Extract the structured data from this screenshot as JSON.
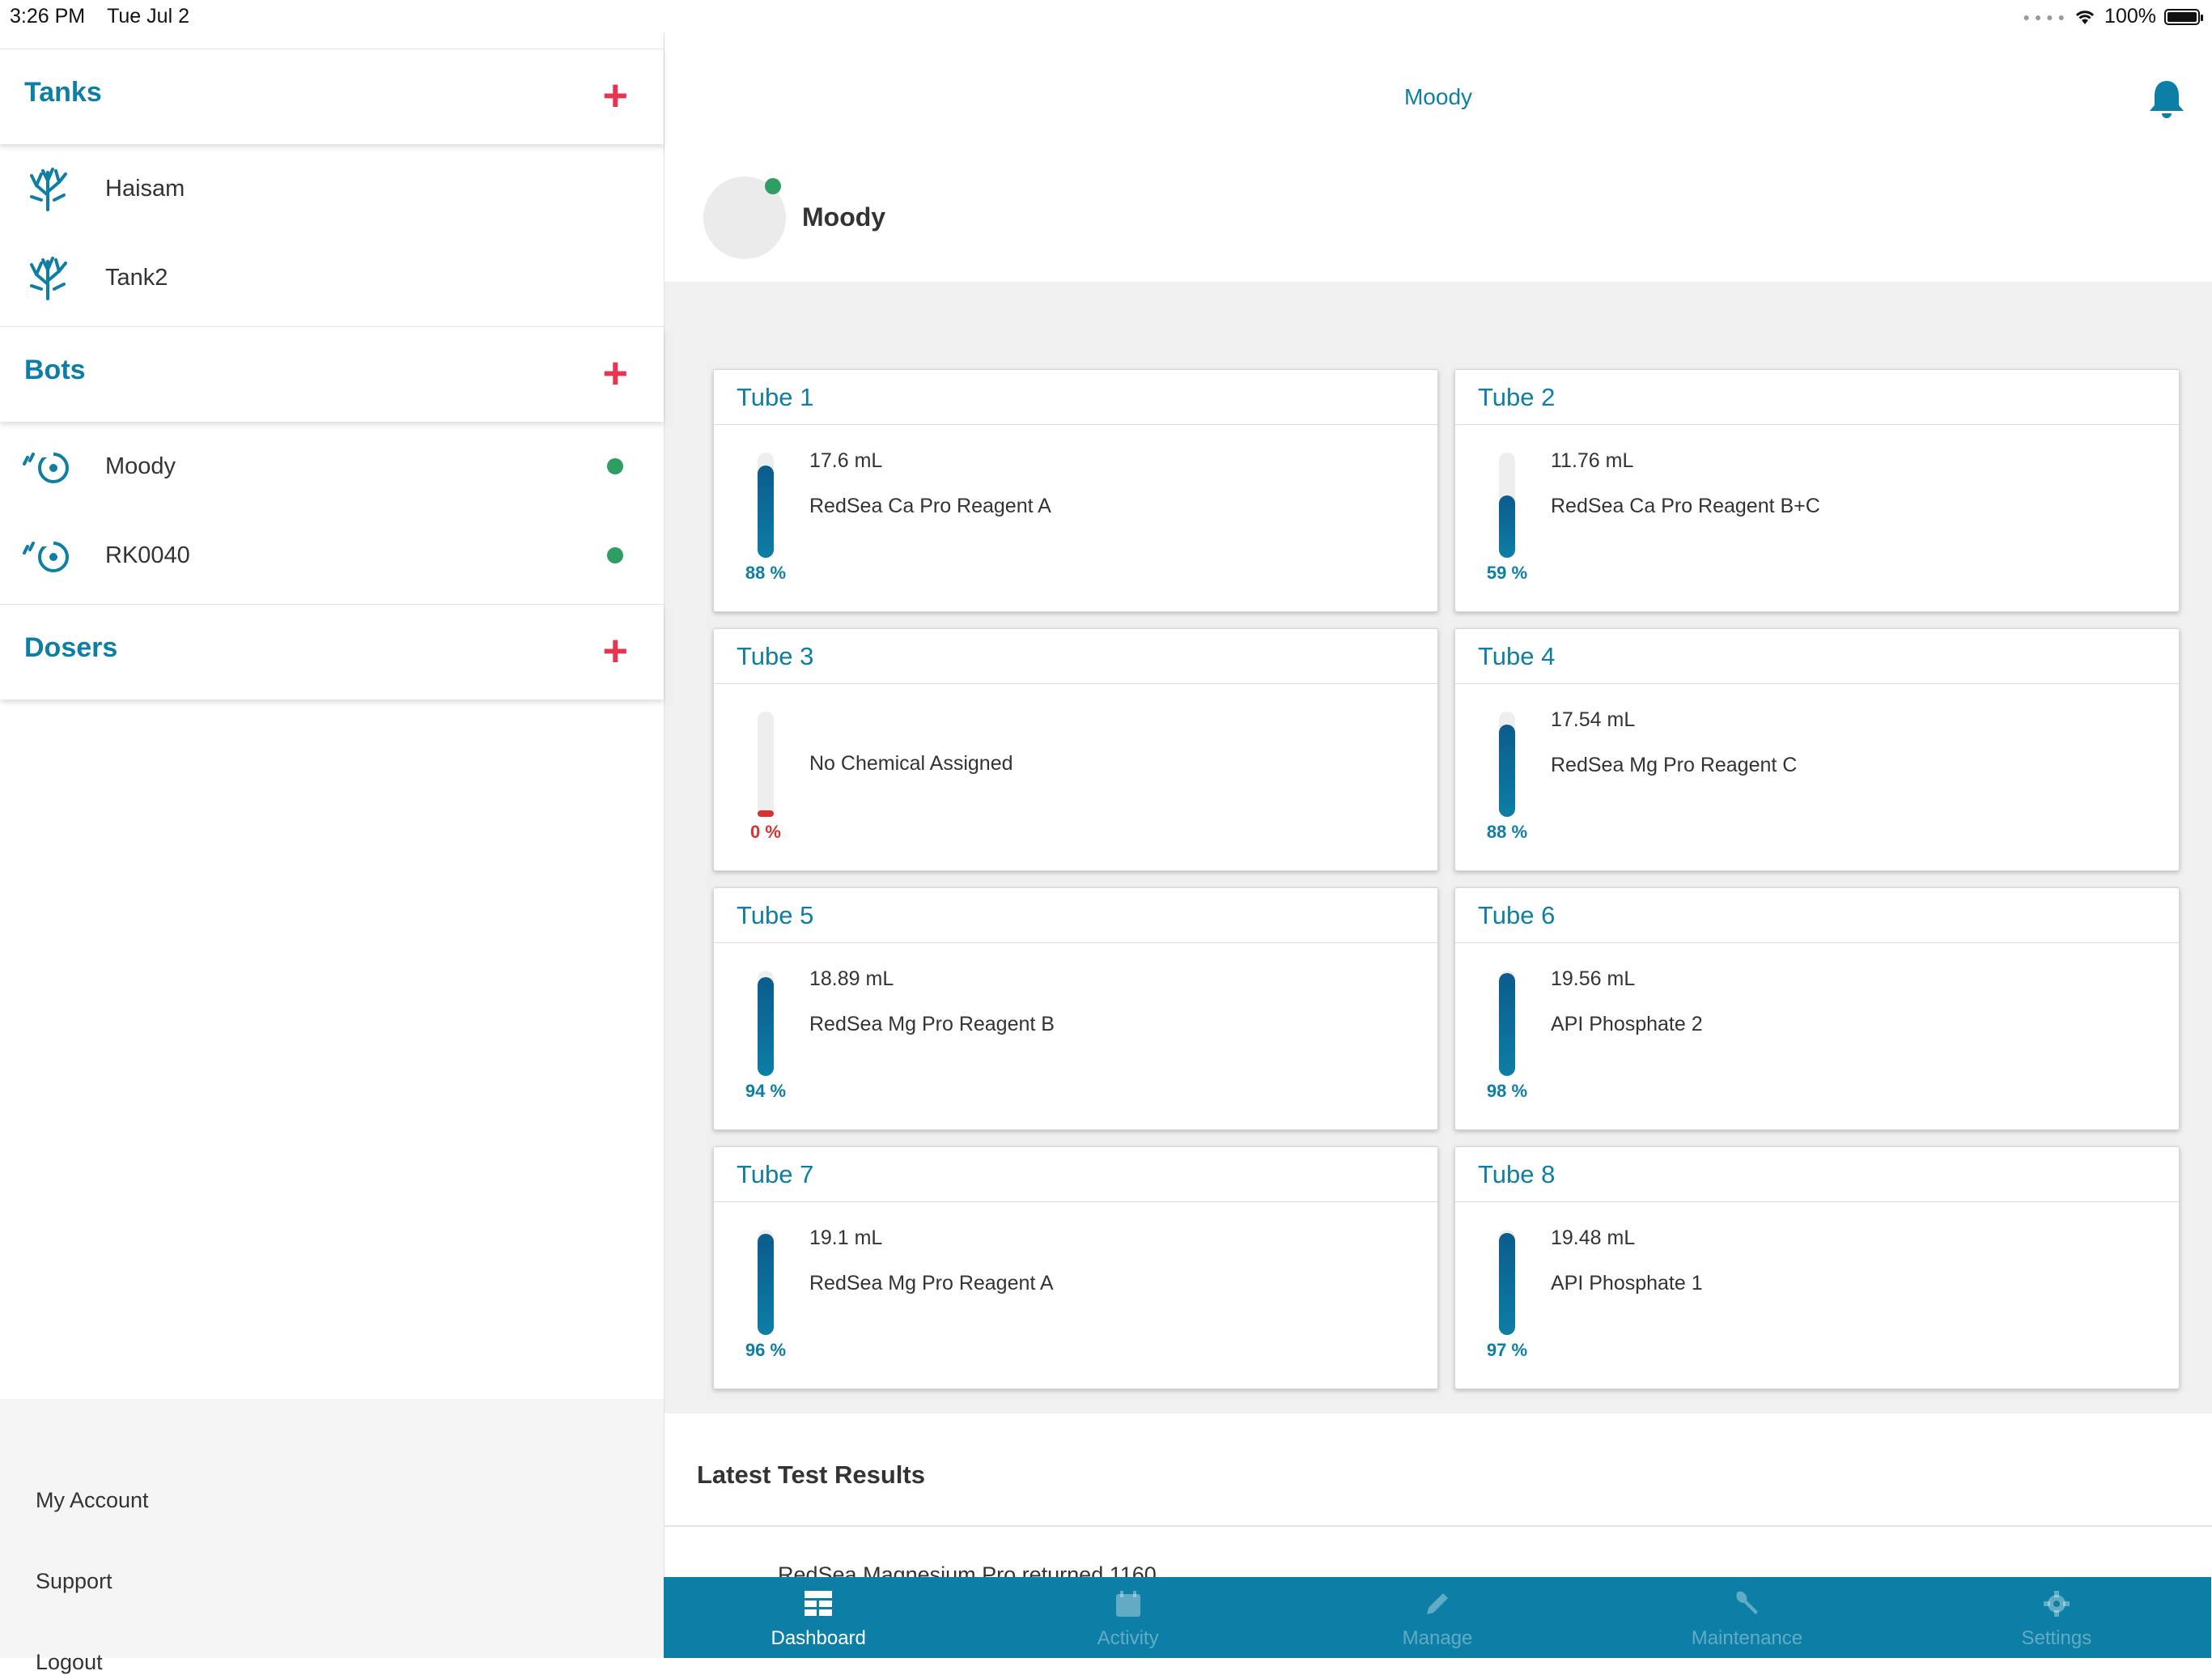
{
  "status_bar": {
    "time": "3:26 PM",
    "date": "Tue Jul 2",
    "battery": "100%"
  },
  "sidebar": {
    "sections": [
      {
        "title": "Tanks",
        "items": [
          {
            "label": "Haisam",
            "icon": "coral-icon"
          },
          {
            "label": "Tank2",
            "icon": "coral-icon"
          }
        ]
      },
      {
        "title": "Bots",
        "items": [
          {
            "label": "Moody",
            "icon": "bot-icon",
            "status": "online"
          },
          {
            "label": "RK0040",
            "icon": "bot-icon",
            "status": "online"
          }
        ]
      },
      {
        "title": "Dosers",
        "items": []
      }
    ],
    "footer": {
      "account": "My Account",
      "support": "Support",
      "logout": "Logout"
    }
  },
  "header": {
    "title": "Moody"
  },
  "bot": {
    "name": "Moody",
    "status": "online"
  },
  "tubes": [
    {
      "title": "Tube 1",
      "volume": "17.6 mL",
      "chemical": "RedSea Ca Pro Reagent A",
      "percent_label": "88 %",
      "level": 0.88
    },
    {
      "title": "Tube 2",
      "volume": "11.76 mL",
      "chemical": "RedSea Ca Pro Reagent B+C",
      "percent_label": "59 %",
      "level": 0.59
    },
    {
      "title": "Tube 3",
      "volume": "",
      "chemical": "No Chemical Assigned",
      "percent_label": "0 %",
      "level": 0
    },
    {
      "title": "Tube 4",
      "volume": "17.54 mL",
      "chemical": "RedSea Mg Pro Reagent C",
      "percent_label": "88 %",
      "level": 0.88
    },
    {
      "title": "Tube 5",
      "volume": "18.89 mL",
      "chemical": "RedSea Mg Pro Reagent B",
      "percent_label": "94 %",
      "level": 0.94
    },
    {
      "title": "Tube 6",
      "volume": "19.56 mL",
      "chemical": "API Phosphate 2",
      "percent_label": "98 %",
      "level": 0.98
    },
    {
      "title": "Tube 7",
      "volume": "19.1 mL",
      "chemical": "RedSea Mg Pro Reagent A",
      "percent_label": "96 %",
      "level": 0.96
    },
    {
      "title": "Tube 8",
      "volume": "19.48 mL",
      "chemical": "API Phosphate 1",
      "percent_label": "97 %",
      "level": 0.97
    }
  ],
  "results": {
    "title": "Latest Test Results",
    "first_row": "RedSea Magnesium Pro returned 1160"
  },
  "tabs": [
    {
      "label": "Dashboard",
      "icon": "dashboard-icon",
      "active": true
    },
    {
      "label": "Activity",
      "icon": "calendar-icon",
      "active": false
    },
    {
      "label": "Manage",
      "icon": "pencil-icon",
      "active": false
    },
    {
      "label": "Maintenance",
      "icon": "wrench-icon",
      "active": false
    },
    {
      "label": "Settings",
      "icon": "gear-icon",
      "active": false
    }
  ],
  "colors": {
    "brand": "#0d7ea6",
    "add": "#e8344e",
    "online": "#2e9e63",
    "empty": "#d93030"
  }
}
